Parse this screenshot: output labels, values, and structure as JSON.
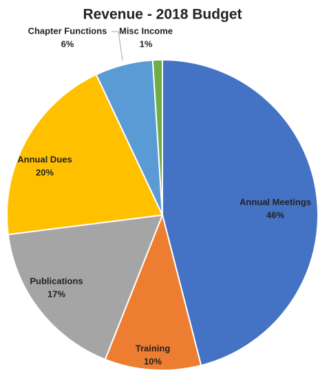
{
  "chart_data": {
    "type": "pie",
    "title": "Revenue - 2018 Budget",
    "categories": [
      "Annual Meetings",
      "Training",
      "Publications",
      "Annual Dues",
      "Chapter Functions",
      "Misc Income"
    ],
    "values": [
      46,
      10,
      17,
      20,
      6,
      1
    ],
    "value_labels": [
      "46%",
      "10%",
      "17%",
      "20%",
      "6%",
      "1%"
    ],
    "colors": [
      "#4472c4",
      "#ed7d31",
      "#a5a5a5",
      "#ffc000",
      "#5b9bd5",
      "#70ad47"
    ]
  }
}
